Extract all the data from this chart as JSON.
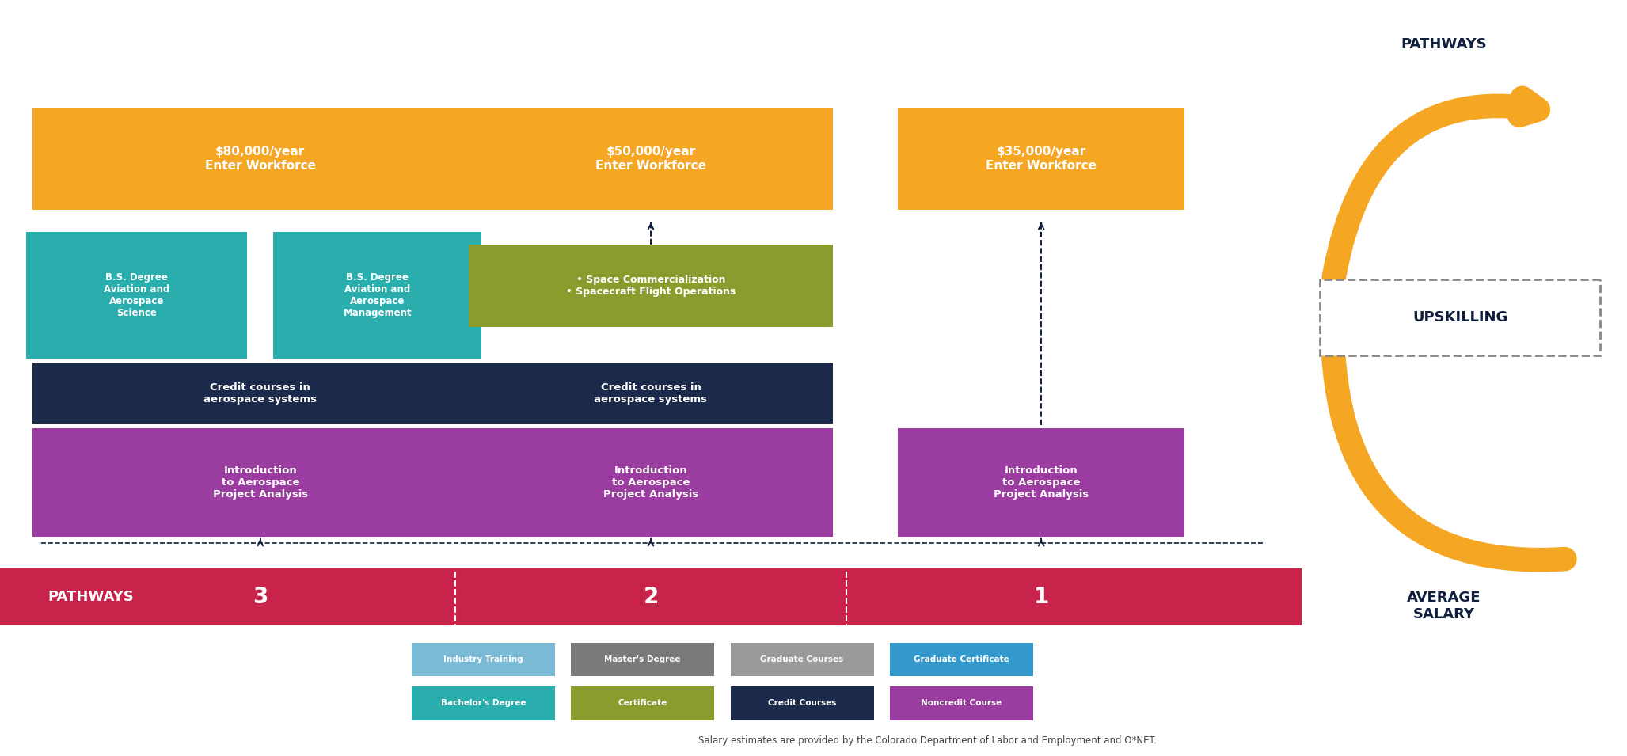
{
  "bg_color": "#ffffff",
  "colors": {
    "orange": "#F5A623",
    "teal": "#2AADAD",
    "navy": "#1B2A4A",
    "purple": "#9B3CA0",
    "olive": "#8B9B2E",
    "crimson": "#C8234A",
    "light_blue": "#7BBAD4",
    "gray": "#7A7A7A",
    "mid_gray": "#9A9A9A",
    "cyan_blue": "#3399CC",
    "dark_navy": "#0F1F3D"
  },
  "footnote": "Salary estimates are provided by the Colorado Department of Labor and Employment and O*NET.",
  "key_row1": [
    {
      "label": "Noncredit Course",
      "color": "#9B3CA0"
    },
    {
      "label": "Credit Courses",
      "color": "#1B2A4A"
    },
    {
      "label": "Certificate",
      "color": "#8B9B2E"
    },
    {
      "label": "Bachelor's Degree",
      "color": "#2AADAD"
    }
  ],
  "key_row2": [
    {
      "label": "Graduate Certificate",
      "color": "#3399CC"
    },
    {
      "label": "Graduate Courses",
      "color": "#9A9A9A"
    },
    {
      "label": "Master's Degree",
      "color": "#7A7A7A"
    },
    {
      "label": "Industry Training",
      "color": "#7BBAD4"
    }
  ]
}
